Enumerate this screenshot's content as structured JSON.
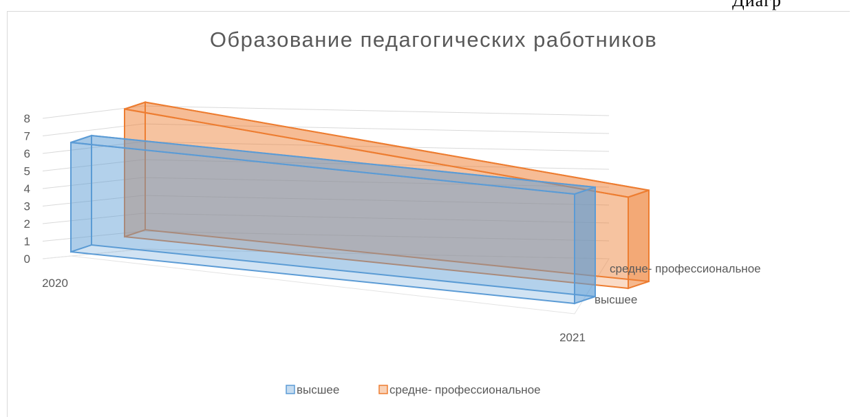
{
  "corner_text": "Диагр",
  "chart_data": {
    "type": "bar",
    "subtype": "3d-column",
    "title": "Образование педагогических работников",
    "categories": [
      "2020",
      "2021"
    ],
    "series": [
      {
        "name": "высшее",
        "values": [
          6,
          6
        ],
        "color": "#5b9bd5"
      },
      {
        "name": "средне- профессиональное",
        "values": [
          7,
          5
        ],
        "color": "#ed7d31"
      }
    ],
    "ylim": [
      0,
      8
    ],
    "yticks": [
      0,
      1,
      2,
      3,
      4,
      5,
      6,
      7,
      8
    ],
    "grid": true,
    "legend": "bottom"
  }
}
